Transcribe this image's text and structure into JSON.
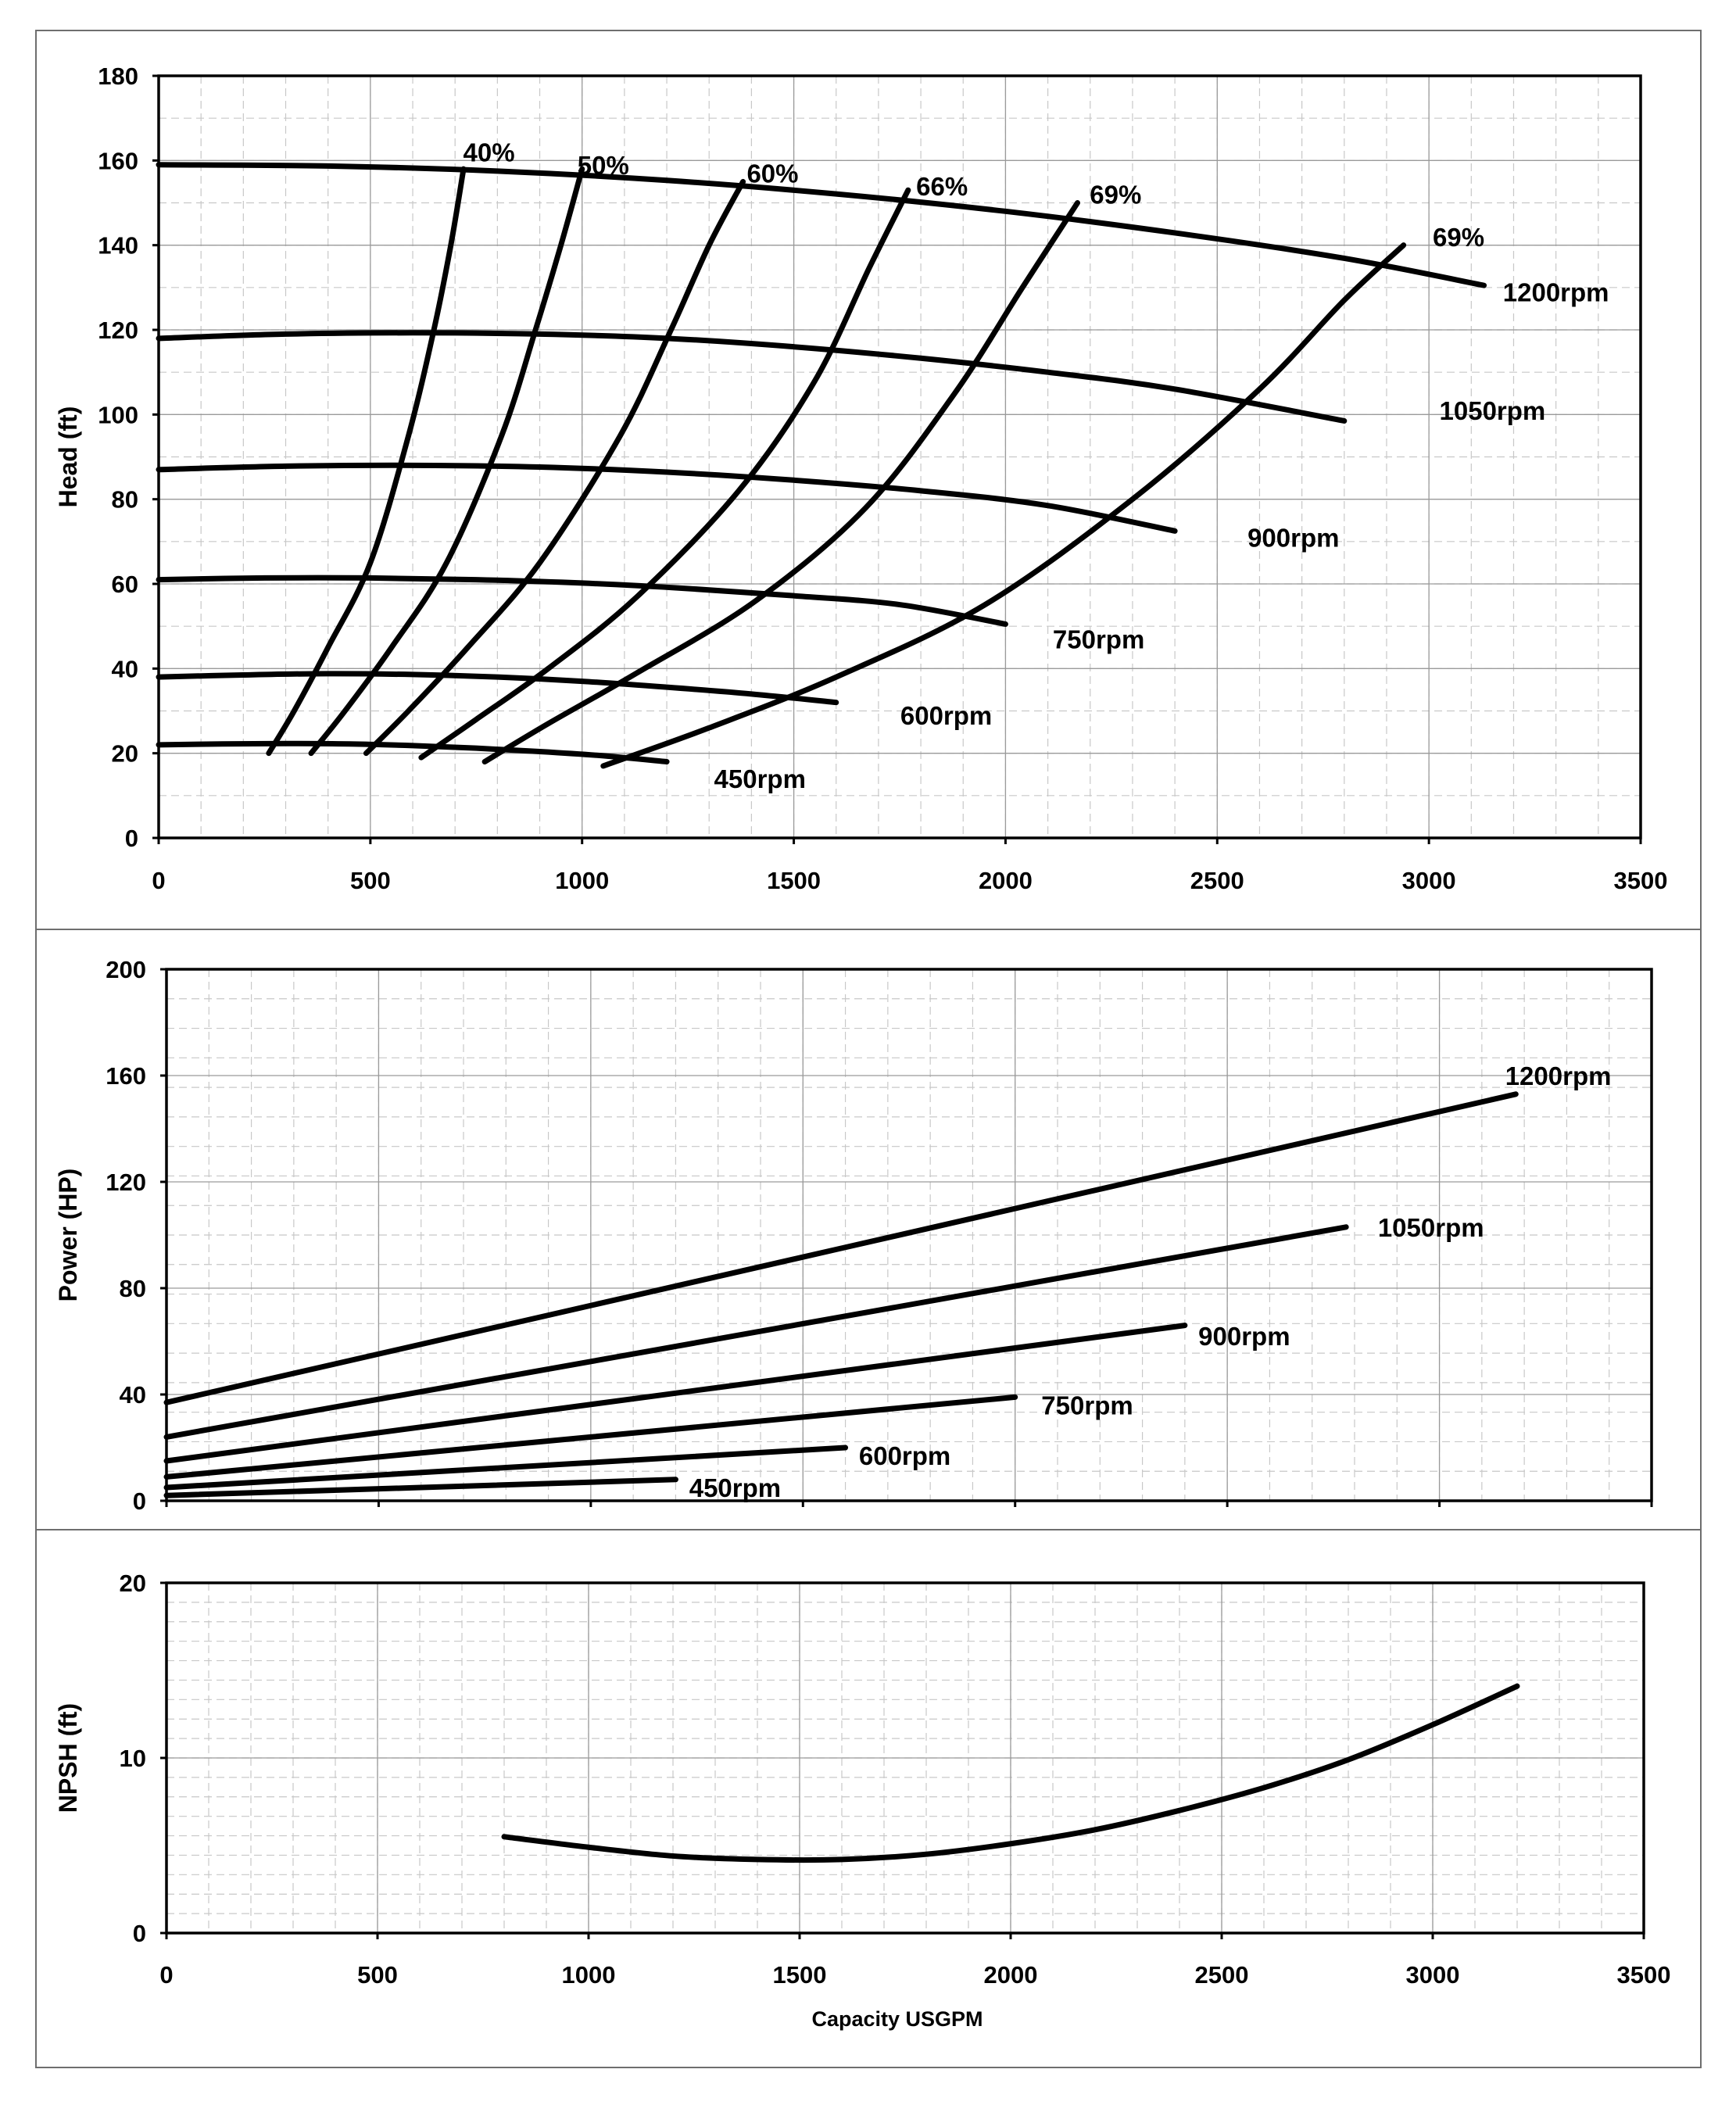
{
  "chart_data": [
    {
      "type": "line",
      "ylabel": "Head (ft)",
      "xlabel": "",
      "xlim": [
        0,
        3500
      ],
      "ylim": [
        0,
        180
      ],
      "xticks": [
        0,
        500,
        1000,
        1500,
        2000,
        2500,
        3000,
        3500
      ],
      "yticks": [
        0,
        20,
        40,
        60,
        80,
        100,
        120,
        140,
        160,
        180
      ],
      "grid": true,
      "series": [
        {
          "name": "1200rpm",
          "points": [
            [
              0,
              159
            ],
            [
              400,
              158.7
            ],
            [
              800,
              157.5
            ],
            [
              1200,
              155.3
            ],
            [
              1600,
              152.1
            ],
            [
              2000,
              148
            ],
            [
              2400,
              142.9
            ],
            [
              2800,
              136.9
            ],
            [
              3130,
              130.5
            ]
          ]
        },
        {
          "name": "1050rpm",
          "points": [
            [
              0,
              118
            ],
            [
              300,
              119
            ],
            [
              600,
              119.3
            ],
            [
              900,
              119
            ],
            [
              1200,
              118
            ],
            [
              1500,
              116
            ],
            [
              1800,
              113.3
            ],
            [
              2100,
              110
            ],
            [
              2400,
              106
            ],
            [
              2800,
              98.5
            ]
          ]
        },
        {
          "name": "900rpm",
          "points": [
            [
              0,
              87
            ],
            [
              300,
              87.8
            ],
            [
              600,
              88
            ],
            [
              900,
              87.6
            ],
            [
              1200,
              86.4
            ],
            [
              1500,
              84.5
            ],
            [
              1800,
              82
            ],
            [
              2100,
              78.5
            ],
            [
              2400,
              72.5
            ]
          ]
        },
        {
          "name": "750rpm",
          "points": [
            [
              0,
              61
            ],
            [
              250,
              61.4
            ],
            [
              500,
              61.4
            ],
            [
              750,
              61
            ],
            [
              1000,
              60.2
            ],
            [
              1250,
              58.9
            ],
            [
              1500,
              57.2
            ],
            [
              1750,
              55.1
            ],
            [
              2000,
              50.5
            ]
          ]
        },
        {
          "name": "600rpm",
          "points": [
            [
              0,
              38
            ],
            [
              200,
              38.5
            ],
            [
              400,
              38.8
            ],
            [
              600,
              38.6
            ],
            [
              800,
              38
            ],
            [
              1000,
              37
            ],
            [
              1200,
              35.6
            ],
            [
              1400,
              34
            ],
            [
              1600,
              32
            ]
          ]
        },
        {
          "name": "450rpm",
          "points": [
            [
              0,
              22
            ],
            [
              150,
              22.2
            ],
            [
              300,
              22.3
            ],
            [
              450,
              22.2
            ],
            [
              600,
              21.8
            ],
            [
              750,
              21.2
            ],
            [
              900,
              20.4
            ],
            [
              1050,
              19.4
            ],
            [
              1200,
              18
            ]
          ]
        },
        {
          "name": "40%",
          "points": [
            [
              260,
              20
            ],
            [
              320,
              30
            ],
            [
              400,
              45
            ],
            [
              500,
              65
            ],
            [
              590,
              95
            ],
            [
              650,
              120
            ],
            [
              690,
              140
            ],
            [
              720,
              158
            ]
          ]
        },
        {
          "name": "50%",
          "points": [
            [
              360,
              20
            ],
            [
              440,
              30
            ],
            [
              550,
              45
            ],
            [
              680,
              65
            ],
            [
              810,
              95
            ],
            [
              890,
              120
            ],
            [
              950,
              140
            ],
            [
              1000,
              158
            ]
          ]
        },
        {
          "name": "60%",
          "points": [
            [
              490,
              20
            ],
            [
              590,
              30
            ],
            [
              730,
              45
            ],
            [
              900,
              65
            ],
            [
              1090,
              95
            ],
            [
              1210,
              120
            ],
            [
              1300,
              140
            ],
            [
              1380,
              155
            ]
          ]
        },
        {
          "name": "66%",
          "points": [
            [
              620,
              19
            ],
            [
              750,
              28
            ],
            [
              920,
              40
            ],
            [
              1130,
              57
            ],
            [
              1370,
              82
            ],
            [
              1550,
              108
            ],
            [
              1680,
              135
            ],
            [
              1770,
              153
            ]
          ]
        },
        {
          "name": "69%",
          "points": [
            [
              770,
              18
            ],
            [
              920,
              27
            ],
            [
              1130,
              39
            ],
            [
              1410,
              56
            ],
            [
              1670,
              78
            ],
            [
              1880,
              105
            ],
            [
              2040,
              130
            ],
            [
              2170,
              150
            ]
          ]
        },
        {
          "name": "69%",
          "points": [
            [
              1050,
              17
            ],
            [
              1300,
              26
            ],
            [
              1600,
              38
            ],
            [
              1950,
              55
            ],
            [
              2300,
              80
            ],
            [
              2600,
              106
            ],
            [
              2800,
              127
            ],
            [
              2940,
              140
            ]
          ]
        }
      ],
      "labels": [
        {
          "text": "40%",
          "x": 780,
          "y": 162
        },
        {
          "text": "50%",
          "x": 1050,
          "y": 159
        },
        {
          "text": "60%",
          "x": 1450,
          "y": 157
        },
        {
          "text": "66%",
          "x": 1850,
          "y": 154
        },
        {
          "text": "69%",
          "x": 2260,
          "y": 152
        },
        {
          "text": "69%",
          "x": 3070,
          "y": 142
        },
        {
          "text": "1200rpm",
          "x": 3300,
          "y": 129
        },
        {
          "text": "1050rpm",
          "x": 3150,
          "y": 101
        },
        {
          "text": "900rpm",
          "x": 2680,
          "y": 71
        },
        {
          "text": "750rpm",
          "x": 2220,
          "y": 47
        },
        {
          "text": "600rpm",
          "x": 1860,
          "y": 29
        },
        {
          "text": "450rpm",
          "x": 1420,
          "y": 14
        }
      ]
    },
    {
      "type": "line",
      "ylabel": "Power (HP)",
      "xlabel": "",
      "xlim": [
        0,
        3500
      ],
      "ylim": [
        0,
        200
      ],
      "yticks": [
        0,
        40,
        80,
        120,
        160,
        200
      ],
      "xticks": [
        0,
        500,
        1000,
        1500,
        2000,
        2500,
        3000,
        3500
      ],
      "show_x_tick_labels": false,
      "grid": true,
      "series": [
        {
          "name": "1200rpm",
          "points": [
            [
              0,
              37
            ],
            [
              3180,
              153
            ]
          ]
        },
        {
          "name": "1050rpm",
          "points": [
            [
              0,
              24
            ],
            [
              2780,
              103
            ]
          ]
        },
        {
          "name": "900rpm",
          "points": [
            [
              0,
              15
            ],
            [
              2400,
              66
            ]
          ]
        },
        {
          "name": "750rpm",
          "points": [
            [
              0,
              9
            ],
            [
              2000,
              39
            ]
          ]
        },
        {
          "name": "600rpm",
          "points": [
            [
              0,
              5
            ],
            [
              1600,
              20
            ]
          ]
        },
        {
          "name": "450rpm",
          "points": [
            [
              0,
              2
            ],
            [
              1200,
              8
            ]
          ]
        }
      ],
      "labels": [
        {
          "text": "1200rpm",
          "x": 3280,
          "y": 160
        },
        {
          "text": "1050rpm",
          "x": 2980,
          "y": 103
        },
        {
          "text": "900rpm",
          "x": 2540,
          "y": 62
        },
        {
          "text": "750rpm",
          "x": 2170,
          "y": 36
        },
        {
          "text": "600rpm",
          "x": 1740,
          "y": 17
        },
        {
          "text": "450rpm",
          "x": 1340,
          "y": 5
        }
      ]
    },
    {
      "type": "line",
      "ylabel": "NPSH (ft)",
      "xlabel": "Capacity USGPM",
      "xlim": [
        0,
        3500
      ],
      "ylim": [
        0,
        20
      ],
      "yticks": [
        0,
        10,
        20
      ],
      "xticks": [
        0,
        500,
        1000,
        1500,
        2000,
        2500,
        3000,
        3500
      ],
      "grid": true,
      "series": [
        {
          "name": "",
          "points": [
            [
              800,
              5.5
            ],
            [
              1000,
              4.9
            ],
            [
              1200,
              4.4
            ],
            [
              1400,
              4.2
            ],
            [
              1600,
              4.2
            ],
            [
              1800,
              4.5
            ],
            [
              2000,
              5.1
            ],
            [
              2200,
              5.9
            ],
            [
              2400,
              7
            ],
            [
              2600,
              8.3
            ],
            [
              2800,
              9.9
            ],
            [
              3000,
              11.9
            ],
            [
              3200,
              14.1
            ]
          ]
        }
      ]
    }
  ]
}
